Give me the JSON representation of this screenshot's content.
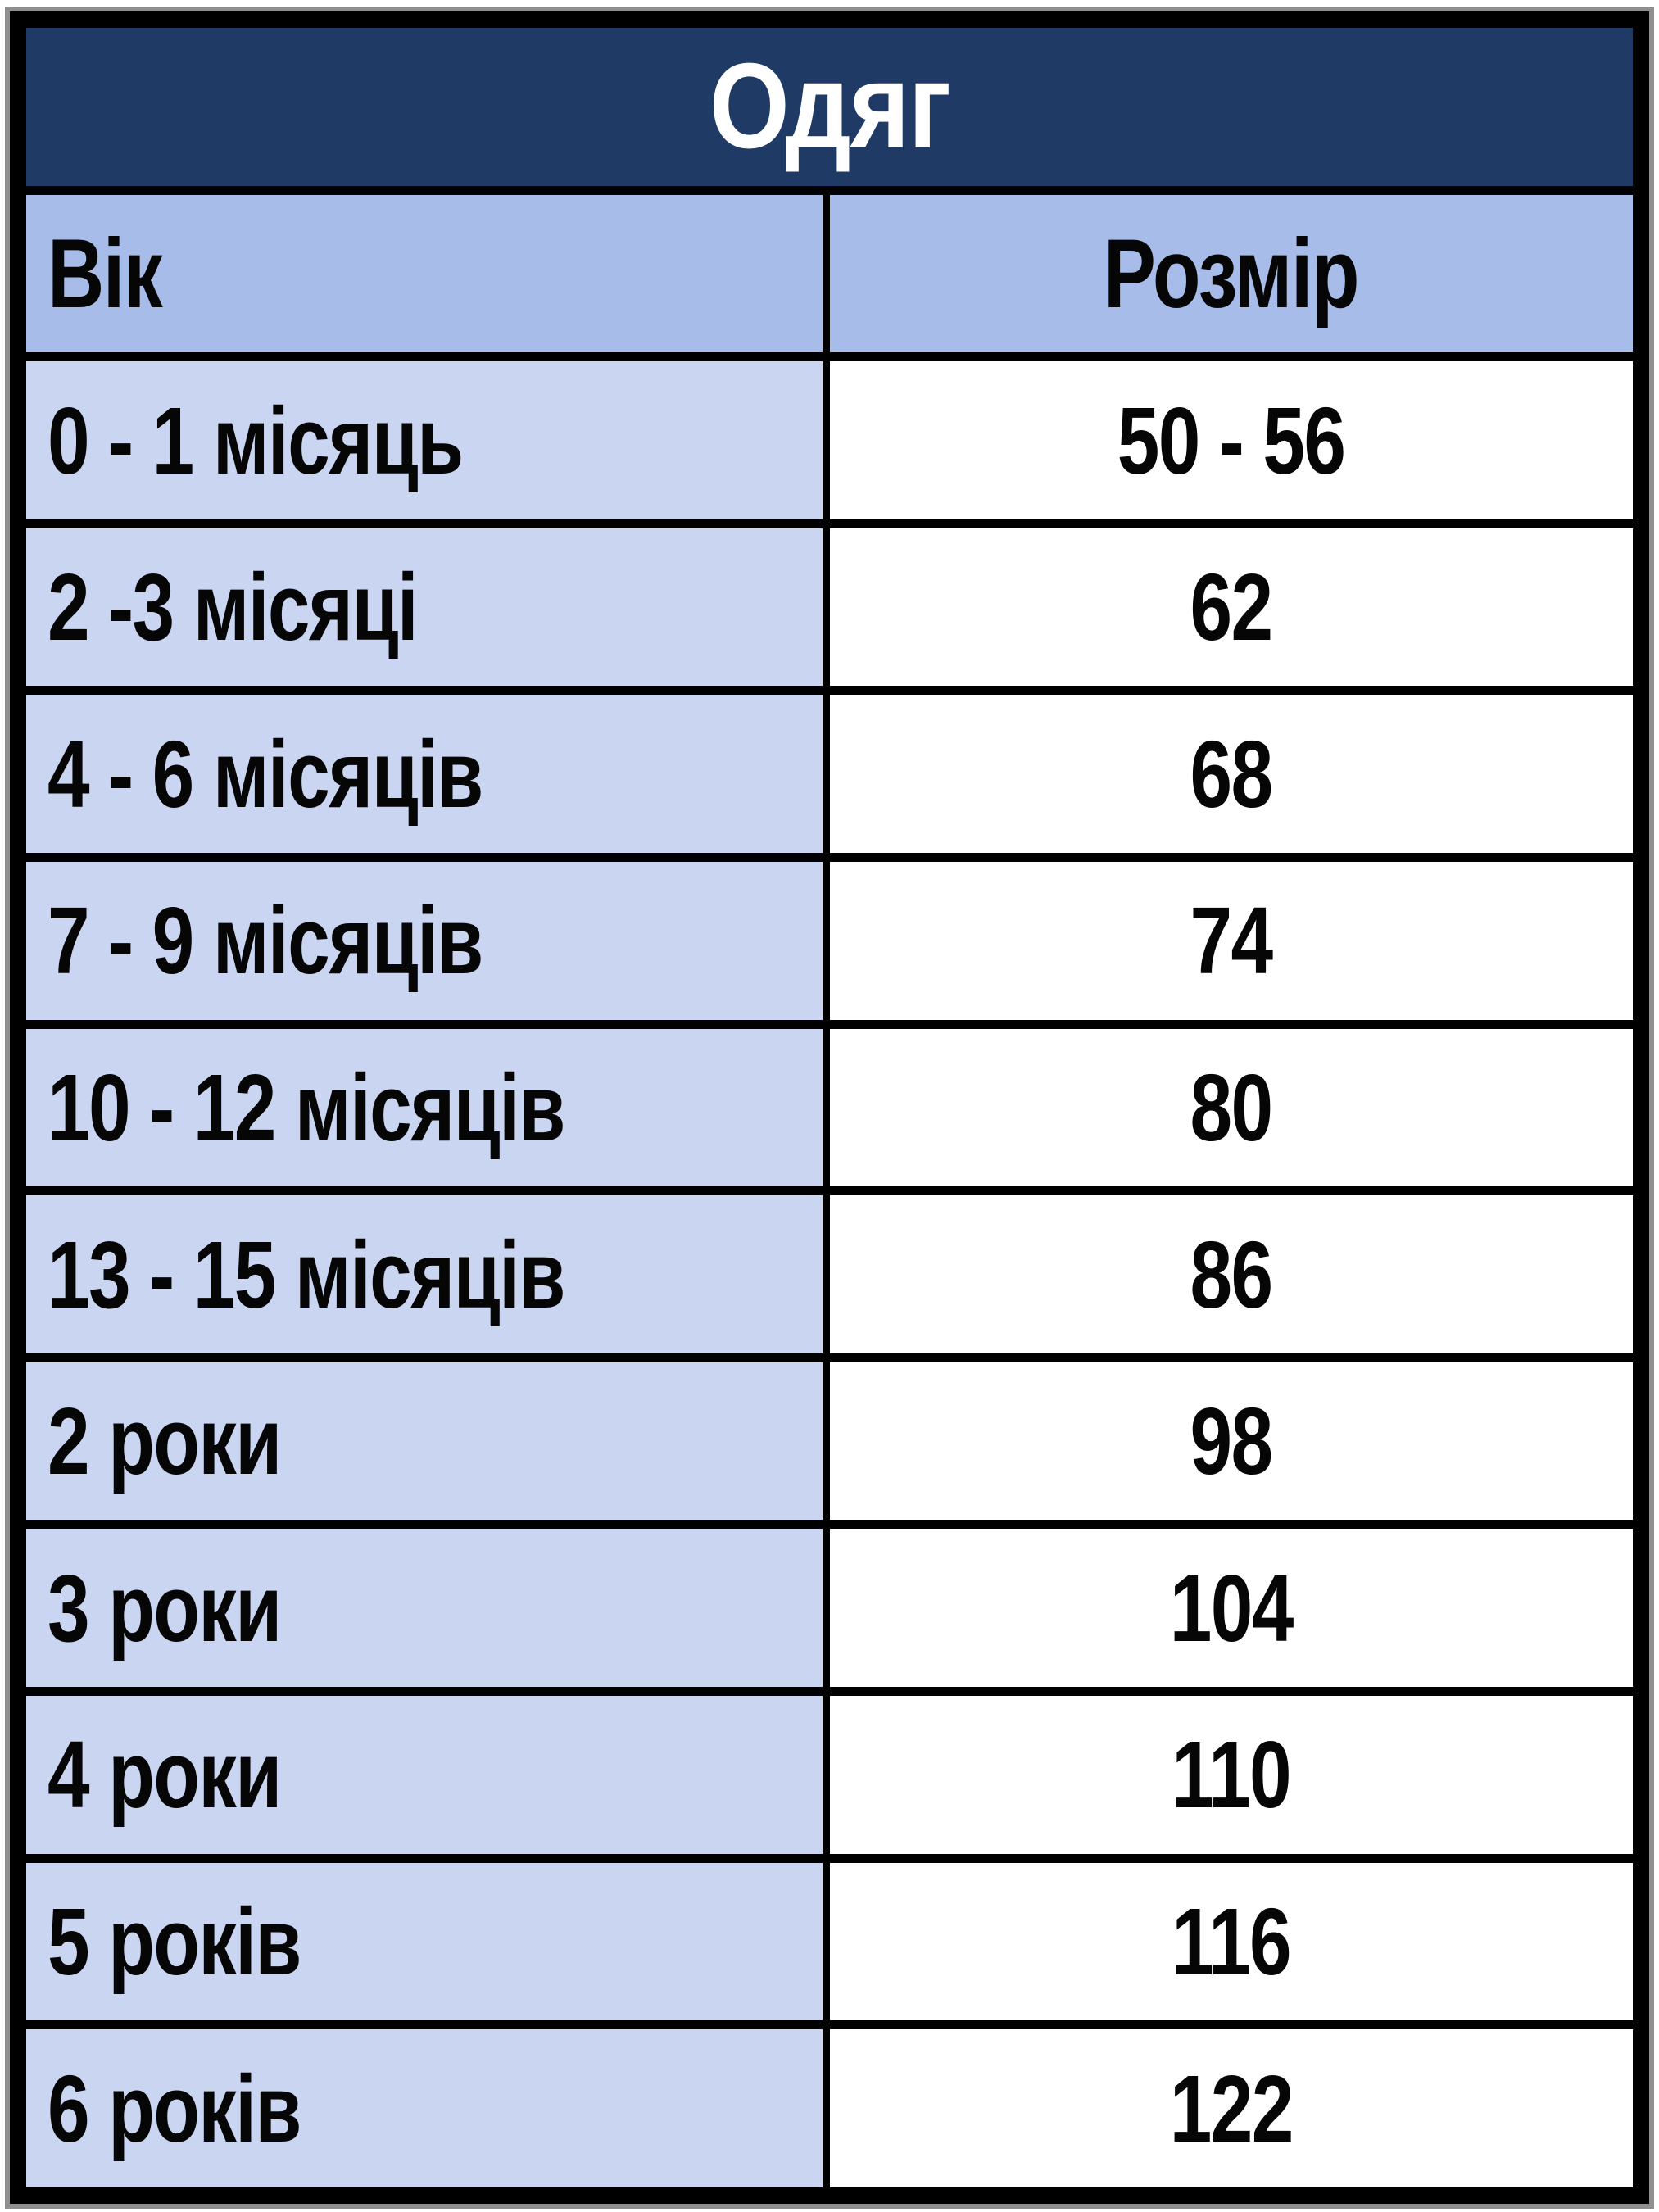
{
  "title": "Одяг",
  "columns": {
    "age": "Вік",
    "size": "Розмір"
  },
  "rows": [
    {
      "age": "0 - 1 місяць",
      "size": "50 - 56"
    },
    {
      "age": "2 -3 місяці",
      "size": "62"
    },
    {
      "age": "4 - 6 місяців",
      "size": "68"
    },
    {
      "age": "7 - 9 місяців",
      "size": "74"
    },
    {
      "age": "10 - 12 місяців",
      "size": "80"
    },
    {
      "age": "13 - 15 місяців",
      "size": "86"
    },
    {
      "age": "2 роки",
      "size": "98"
    },
    {
      "age": "3 роки",
      "size": "104"
    },
    {
      "age": "4 роки",
      "size": "110"
    },
    {
      "age": "5 років",
      "size": "116"
    },
    {
      "age": "6 років",
      "size": "122"
    }
  ],
  "colors": {
    "title_bg": "#1f3a64",
    "title_text": "#ffffff",
    "header_bg": "#a7bce9",
    "age_cell_bg": "#c9d5f1",
    "size_cell_bg": "#ffffff",
    "border": "#000000",
    "body_text": "#060606"
  }
}
